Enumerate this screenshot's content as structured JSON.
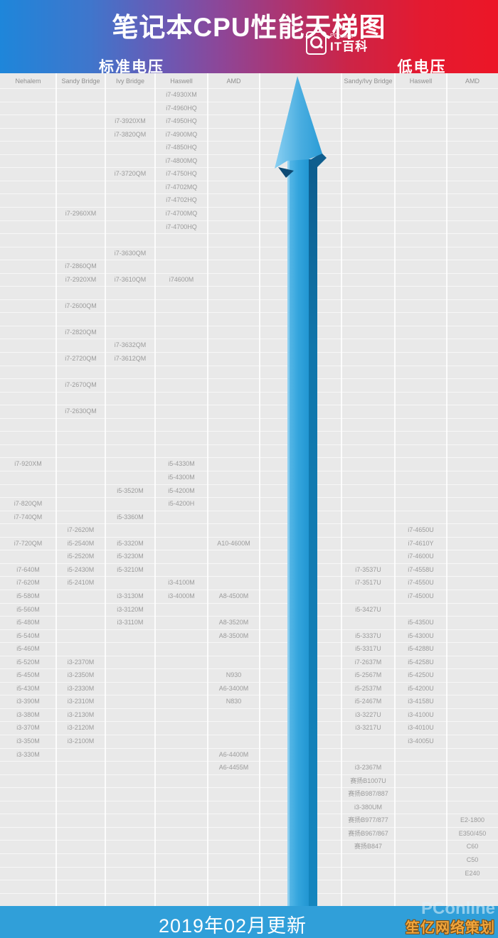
{
  "header": {
    "title": "笔记本CPU性能天梯图",
    "logo": {
      "brand": "PConline",
      "sub": "IT百科"
    },
    "left_section": "标准电压",
    "right_section": "低电压"
  },
  "chart_data": {
    "type": "table",
    "title": "笔记本CPU性能天梯图",
    "sections": [
      {
        "label": "标准电压",
        "columns": [
          "Nehalem",
          "Sandy Bridge",
          "Ivy Bridge",
          "Haswell",
          "AMD"
        ]
      },
      {
        "label": "低电压",
        "columns": [
          "Sandy/Ivy Bridge",
          "Haswell",
          "AMD"
        ]
      }
    ],
    "rows": 61,
    "columns": [
      {
        "id": "nehalem",
        "label": "Nehalem"
      },
      {
        "id": "sandy",
        "label": "Sandy Bridge"
      },
      {
        "id": "ivy",
        "label": "Ivy Bridge"
      },
      {
        "id": "haswell",
        "label": "Haswell"
      },
      {
        "id": "amd",
        "label": "AMD"
      },
      {
        "id": "mid",
        "label": ""
      },
      {
        "id": "sandy_ivy_lv",
        "label": "Sandy/Ivy Bridge"
      },
      {
        "id": "haswell_lv",
        "label": "Haswell"
      },
      {
        "id": "amd_lv",
        "label": "AMD"
      }
    ],
    "cells": [
      {
        "col": "nehalem",
        "row": 29,
        "text": "i7-920XM"
      },
      {
        "col": "nehalem",
        "row": 32,
        "text": "i7-820QM"
      },
      {
        "col": "nehalem",
        "row": 33,
        "text": "i7-740QM"
      },
      {
        "col": "nehalem",
        "row": 35,
        "text": "i7-720QM"
      },
      {
        "col": "nehalem",
        "row": 37,
        "text": "i7-640M"
      },
      {
        "col": "nehalem",
        "row": 38,
        "text": "i7-620M"
      },
      {
        "col": "nehalem",
        "row": 39,
        "text": "i5-580M"
      },
      {
        "col": "nehalem",
        "row": 40,
        "text": "i5-560M"
      },
      {
        "col": "nehalem",
        "row": 41,
        "text": "i5-480M"
      },
      {
        "col": "nehalem",
        "row": 42,
        "text": "i5-540M"
      },
      {
        "col": "nehalem",
        "row": 43,
        "text": "i5-460M"
      },
      {
        "col": "nehalem",
        "row": 44,
        "text": "i5-520M"
      },
      {
        "col": "nehalem",
        "row": 45,
        "text": "i5-450M"
      },
      {
        "col": "nehalem",
        "row": 46,
        "text": "i5-430M"
      },
      {
        "col": "nehalem",
        "row": 47,
        "text": "i3-390M"
      },
      {
        "col": "nehalem",
        "row": 48,
        "text": "i3-380M"
      },
      {
        "col": "nehalem",
        "row": 49,
        "text": "i3-370M"
      },
      {
        "col": "nehalem",
        "row": 50,
        "text": "i3-350M"
      },
      {
        "col": "nehalem",
        "row": 51,
        "text": "i3-330M"
      },
      {
        "col": "sandy",
        "row": 10,
        "text": "i7-2960XM"
      },
      {
        "col": "sandy",
        "row": 14,
        "text": "i7-2860QM"
      },
      {
        "col": "sandy",
        "row": 15,
        "text": "i7-2920XM"
      },
      {
        "col": "sandy",
        "row": 17,
        "text": "i7-2600QM"
      },
      {
        "col": "sandy",
        "row": 19,
        "text": "i7-2820QM"
      },
      {
        "col": "sandy",
        "row": 21,
        "text": "i7-2720QM"
      },
      {
        "col": "sandy",
        "row": 23,
        "text": "i7-2670QM"
      },
      {
        "col": "sandy",
        "row": 25,
        "text": "i7-2630QM"
      },
      {
        "col": "sandy",
        "row": 34,
        "text": "i7-2620M"
      },
      {
        "col": "sandy",
        "row": 35,
        "text": "i5-2540M"
      },
      {
        "col": "sandy",
        "row": 36,
        "text": "i5-2520M"
      },
      {
        "col": "sandy",
        "row": 37,
        "text": "i5-2430M"
      },
      {
        "col": "sandy",
        "row": 38,
        "text": "i5-2410M"
      },
      {
        "col": "sandy",
        "row": 44,
        "text": "i3-2370M"
      },
      {
        "col": "sandy",
        "row": 45,
        "text": "i3-2350M"
      },
      {
        "col": "sandy",
        "row": 46,
        "text": "i3-2330M"
      },
      {
        "col": "sandy",
        "row": 47,
        "text": "i3-2310M"
      },
      {
        "col": "sandy",
        "row": 48,
        "text": "i3-2130M"
      },
      {
        "col": "sandy",
        "row": 49,
        "text": "i3-2120M"
      },
      {
        "col": "sandy",
        "row": 50,
        "text": "i3-2100M"
      },
      {
        "col": "ivy",
        "row": 3,
        "text": "i7-3920XM"
      },
      {
        "col": "ivy",
        "row": 4,
        "text": "i7-3820QM"
      },
      {
        "col": "ivy",
        "row": 7,
        "text": "i7-3720QM"
      },
      {
        "col": "ivy",
        "row": 13,
        "text": "i7-3630QM"
      },
      {
        "col": "ivy",
        "row": 15,
        "text": "i7-3610QM"
      },
      {
        "col": "ivy",
        "row": 20,
        "text": "i7-3632QM"
      },
      {
        "col": "ivy",
        "row": 21,
        "text": "i7-3612QM"
      },
      {
        "col": "ivy",
        "row": 31,
        "text": "i5-3520M"
      },
      {
        "col": "ivy",
        "row": 33,
        "text": "i5-3360M"
      },
      {
        "col": "ivy",
        "row": 35,
        "text": "i5-3320M"
      },
      {
        "col": "ivy",
        "row": 36,
        "text": "i5-3230M"
      },
      {
        "col": "ivy",
        "row": 37,
        "text": "i5-3210M"
      },
      {
        "col": "ivy",
        "row": 39,
        "text": "i3-3130M"
      },
      {
        "col": "ivy",
        "row": 40,
        "text": "i3-3120M"
      },
      {
        "col": "ivy",
        "row": 41,
        "text": "i3-3110M"
      },
      {
        "col": "haswell",
        "row": 1,
        "text": "i7-4930XM"
      },
      {
        "col": "haswell",
        "row": 2,
        "text": "i7-4960HQ"
      },
      {
        "col": "haswell",
        "row": 3,
        "text": "i7-4950HQ"
      },
      {
        "col": "haswell",
        "row": 4,
        "text": "i7-4900MQ"
      },
      {
        "col": "haswell",
        "row": 5,
        "text": "i7-4850HQ"
      },
      {
        "col": "haswell",
        "row": 6,
        "text": "i7-4800MQ"
      },
      {
        "col": "haswell",
        "row": 7,
        "text": "i7-4750HQ"
      },
      {
        "col": "haswell",
        "row": 8,
        "text": "i7-4702MQ"
      },
      {
        "col": "haswell",
        "row": 9,
        "text": "i7-4702HQ"
      },
      {
        "col": "haswell",
        "row": 10,
        "text": "i7-4700MQ"
      },
      {
        "col": "haswell",
        "row": 11,
        "text": "i7-4700HQ"
      },
      {
        "col": "haswell",
        "row": 15,
        "text": "i74600M"
      },
      {
        "col": "haswell",
        "row": 29,
        "text": "i5-4330M"
      },
      {
        "col": "haswell",
        "row": 30,
        "text": "i5-4300M"
      },
      {
        "col": "haswell",
        "row": 31,
        "text": "i5-4200M"
      },
      {
        "col": "haswell",
        "row": 32,
        "text": "i5-4200H"
      },
      {
        "col": "haswell",
        "row": 38,
        "text": "i3-4100M"
      },
      {
        "col": "haswell",
        "row": 39,
        "text": "i3-4000M"
      },
      {
        "col": "amd",
        "row": 35,
        "text": "A10-4600M"
      },
      {
        "col": "amd",
        "row": 39,
        "text": "A8-4500M"
      },
      {
        "col": "amd",
        "row": 41,
        "text": "A8-3520M"
      },
      {
        "col": "amd",
        "row": 42,
        "text": "A8-3500M"
      },
      {
        "col": "amd",
        "row": 45,
        "text": "N930"
      },
      {
        "col": "amd",
        "row": 46,
        "text": "A6-3400M"
      },
      {
        "col": "amd",
        "row": 47,
        "text": "N830"
      },
      {
        "col": "amd",
        "row": 51,
        "text": "A6-4400M"
      },
      {
        "col": "amd",
        "row": 52,
        "text": "A6-4455M"
      },
      {
        "col": "sandy_ivy_lv",
        "row": 37,
        "text": "i7-3537U"
      },
      {
        "col": "sandy_ivy_lv",
        "row": 38,
        "text": "i7-3517U"
      },
      {
        "col": "sandy_ivy_lv",
        "row": 40,
        "text": "i5-3427U"
      },
      {
        "col": "sandy_ivy_lv",
        "row": 42,
        "text": "i5-3337U"
      },
      {
        "col": "sandy_ivy_lv",
        "row": 43,
        "text": "i5-3317U"
      },
      {
        "col": "sandy_ivy_lv",
        "row": 44,
        "text": "i7-2637M"
      },
      {
        "col": "sandy_ivy_lv",
        "row": 45,
        "text": "i5-2567M"
      },
      {
        "col": "sandy_ivy_lv",
        "row": 46,
        "text": "i5-2537M"
      },
      {
        "col": "sandy_ivy_lv",
        "row": 47,
        "text": "i5-2467M"
      },
      {
        "col": "sandy_ivy_lv",
        "row": 48,
        "text": "i3-3227U"
      },
      {
        "col": "sandy_ivy_lv",
        "row": 49,
        "text": "i3-3217U"
      },
      {
        "col": "sandy_ivy_lv",
        "row": 52,
        "text": "i3-2367M"
      },
      {
        "col": "sandy_ivy_lv",
        "row": 53,
        "text": "赛扬B1007U"
      },
      {
        "col": "sandy_ivy_lv",
        "row": 54,
        "text": "赛扬B987/887"
      },
      {
        "col": "sandy_ivy_lv",
        "row": 55,
        "text": "i3-380UM"
      },
      {
        "col": "sandy_ivy_lv",
        "row": 56,
        "text": "赛扬B977/877"
      },
      {
        "col": "sandy_ivy_lv",
        "row": 57,
        "text": "赛扬B967/867"
      },
      {
        "col": "sandy_ivy_lv",
        "row": 58,
        "text": "赛扬B847"
      },
      {
        "col": "haswell_lv",
        "row": 34,
        "text": "i7-4650U"
      },
      {
        "col": "haswell_lv",
        "row": 35,
        "text": "i7-4610Y"
      },
      {
        "col": "haswell_lv",
        "row": 36,
        "text": "i7-4600U"
      },
      {
        "col": "haswell_lv",
        "row": 37,
        "text": "i7-4558U"
      },
      {
        "col": "haswell_lv",
        "row": 38,
        "text": "i7-4550U"
      },
      {
        "col": "haswell_lv",
        "row": 39,
        "text": "i7-4500U"
      },
      {
        "col": "haswell_lv",
        "row": 41,
        "text": "i5-4350U"
      },
      {
        "col": "haswell_lv",
        "row": 42,
        "text": "i5-4300U"
      },
      {
        "col": "haswell_lv",
        "row": 43,
        "text": "i5-4288U"
      },
      {
        "col": "haswell_lv",
        "row": 44,
        "text": "i5-4258U"
      },
      {
        "col": "haswell_lv",
        "row": 45,
        "text": "i5-4250U"
      },
      {
        "col": "haswell_lv",
        "row": 46,
        "text": "i5-4200U"
      },
      {
        "col": "haswell_lv",
        "row": 47,
        "text": "i3-4158U"
      },
      {
        "col": "haswell_lv",
        "row": 48,
        "text": "i3-4100U"
      },
      {
        "col": "haswell_lv",
        "row": 49,
        "text": "i3-4010U"
      },
      {
        "col": "haswell_lv",
        "row": 50,
        "text": "i3-4005U"
      },
      {
        "col": "amd_lv",
        "row": 56,
        "text": "E2-1800"
      },
      {
        "col": "amd_lv",
        "row": 57,
        "text": "E350/450"
      },
      {
        "col": "amd_lv",
        "row": 58,
        "text": "C60"
      },
      {
        "col": "amd_lv",
        "row": 59,
        "text": "C50"
      },
      {
        "col": "amd_lv",
        "row": 60,
        "text": "E240"
      }
    ]
  },
  "footer": {
    "update_text": "2019年02月更新",
    "watermark_brand": "PConline",
    "watermark_site": "笙亿网络策划"
  },
  "colors": {
    "header_blue": "#1e86da",
    "header_red": "#ec1627",
    "footer_bar": "#309fd9",
    "arrow_main": "#2fa0d8",
    "arrow_side": "#0f6496",
    "table_bg": "#e9e9e9",
    "cell_text": "#9b9b9b",
    "watermark_orange": "#f0a53c"
  }
}
